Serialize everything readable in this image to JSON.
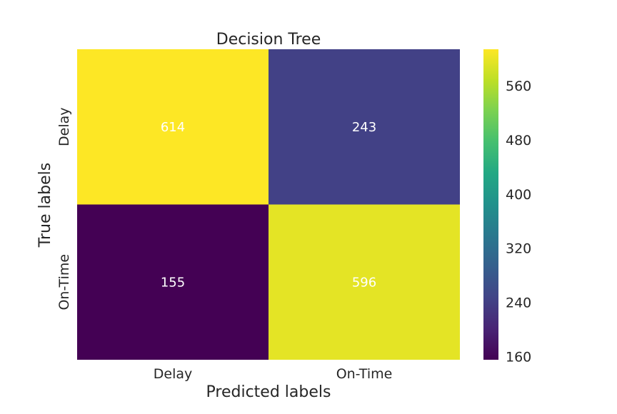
{
  "chart_data": {
    "type": "heatmap",
    "title": "Decision Tree",
    "xlabel": "Predicted labels",
    "ylabel": "True labels",
    "x_categories": [
      "Delay",
      "On-Time"
    ],
    "y_categories": [
      "Delay",
      "On-Time"
    ],
    "values": [
      [
        614,
        243
      ],
      [
        155,
        596
      ]
    ],
    "colormap": "viridis",
    "vmin": 155,
    "vmax": 614,
    "colorbar_ticks": [
      160,
      240,
      320,
      400,
      480,
      560
    ],
    "annotation_color": "#ffffff"
  }
}
